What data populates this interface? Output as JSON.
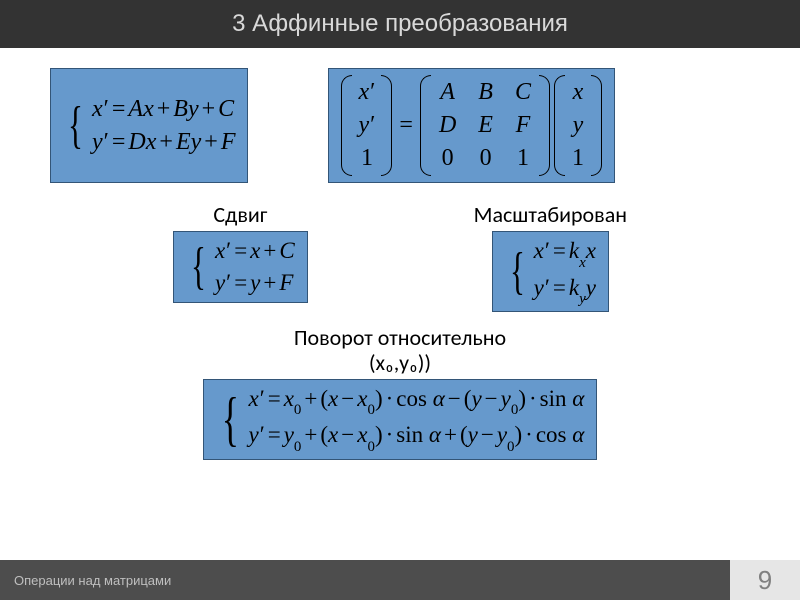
{
  "colors": {
    "title_bg": "#333333",
    "title_fg": "#d9d9d9",
    "formula_bg": "#6699cc",
    "formula_border": "#335577",
    "footer_left_bg": "#4d4d4d",
    "footer_left_fg": "#bfbfbf",
    "footer_right_bg": "#e6e6e6",
    "footer_right_fg": "#808080",
    "page_bg": "#ffffff",
    "text": "#000000"
  },
  "typography": {
    "title_fontsize": 24,
    "label_fontsize": 22,
    "formula_fontsize": 24,
    "footer_fontsize": 13,
    "page_number_fontsize": 26,
    "formula_font": "Times New Roman, serif",
    "ui_font": "Segoe UI, Calibri, Arial"
  },
  "title": "3 Аффинные преобразования",
  "general": {
    "type": "equation-system",
    "line1_lhs": "x′",
    "line1_rhs": "Ax + By + C",
    "line2_lhs": "y′",
    "line2_rhs": "Dx + Ey + F"
  },
  "matrix": {
    "type": "matrix-equation",
    "lhs_vec": [
      "x′",
      "y′",
      "1"
    ],
    "matrix_rows": [
      [
        "A",
        "B",
        "C"
      ],
      [
        "D",
        "E",
        "F"
      ],
      [
        "0",
        "0",
        "1"
      ]
    ],
    "rhs_vec": [
      "x",
      "y",
      "1"
    ],
    "eq": "="
  },
  "shift": {
    "label": "Сдвиг",
    "type": "equation-system",
    "line1": "x′ = x + C",
    "line2": "y′ = y + F"
  },
  "scale": {
    "label": "Масштабирован",
    "type": "equation-system",
    "line1_html": "x′ = k<sub>x</sub>x",
    "line2_html": "y′ = k<sub>y</sub>y"
  },
  "rotation": {
    "label_line1": "Поворот относительно",
    "label_line2": "(x₀,y₀))",
    "type": "equation-system",
    "line1_html": "x′ = x<sub>0</sub> + (x − x<sub>0</sub>) · cos α − (y − y<sub>0</sub>) · sin α",
    "line2_html": "y′ = y<sub>0</sub> + (x − x<sub>0</sub>) · sin α + (y − y<sub>0</sub>) · cos α"
  },
  "footer": {
    "left": "Операции над матрицами",
    "page": "9"
  }
}
